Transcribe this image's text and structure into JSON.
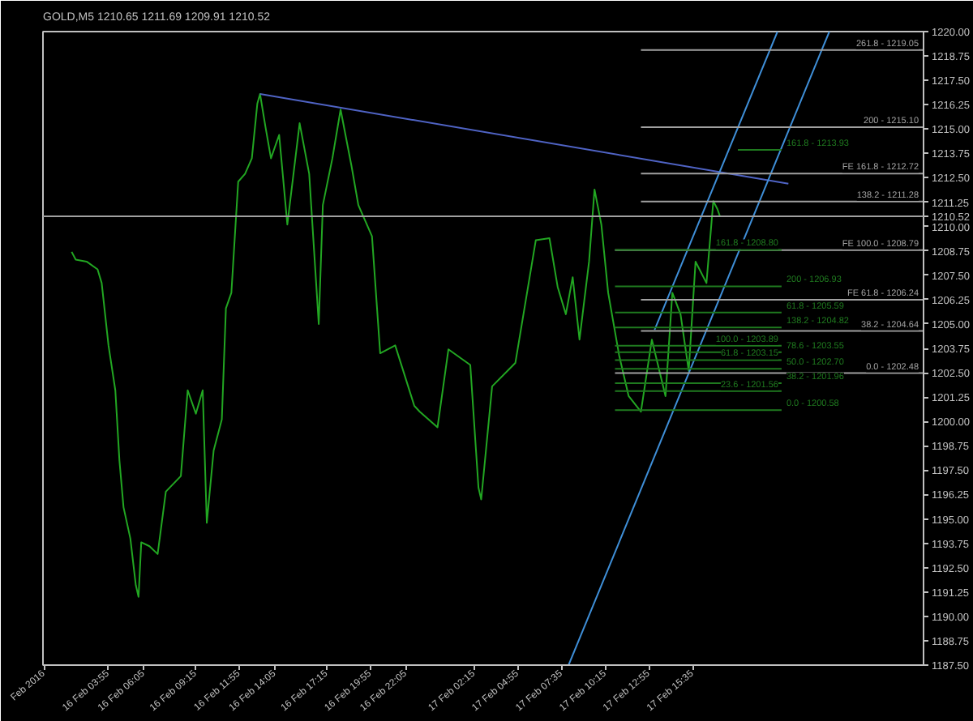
{
  "chart_data": {
    "type": "line",
    "title": "GOLD,M5  1210.65 1211.69 1209.91 1210.52",
    "xlim": [
      "2016-02-15T23:55",
      "2016-02-18T05:40"
    ],
    "ylim": [
      1187.5,
      1220.0
    ],
    "xticks": [
      {
        "value": "2016-02-16T00:00",
        "label": "Feb 2016"
      },
      {
        "value": "2016-02-16T03:55",
        "label": "16 Feb 03:55"
      },
      {
        "value": "2016-02-16T06:05",
        "label": "16 Feb 06:05"
      },
      {
        "value": "2016-02-16T09:15",
        "label": "16 Feb 09:15"
      },
      {
        "value": "2016-02-16T11:55",
        "label": "16 Feb 11:55"
      },
      {
        "value": "2016-02-16T14:05",
        "label": "16 Feb 14:05"
      },
      {
        "value": "2016-02-16T17:15",
        "label": "16 Feb 17:15"
      },
      {
        "value": "2016-02-16T19:55",
        "label": "16 Feb 19:55"
      },
      {
        "value": "2016-02-16T22:05",
        "label": "16 Feb 22:05"
      },
      {
        "value": "2016-02-17T02:15",
        "label": "17 Feb 02:15"
      },
      {
        "value": "2016-02-17T04:55",
        "label": "17 Feb 04:55"
      },
      {
        "value": "2016-02-17T07:35",
        "label": "17 Feb 07:35"
      },
      {
        "value": "2016-02-17T10:15",
        "label": "17 Feb 10:15"
      },
      {
        "value": "2016-02-17T12:55",
        "label": "17 Feb 12:55"
      },
      {
        "value": "2016-02-17T15:35",
        "label": "17 Feb 15:35"
      }
    ],
    "yticks": [
      {
        "value": 1187.5,
        "label": "1187.50"
      },
      {
        "value": 1188.75,
        "label": "1188.75"
      },
      {
        "value": 1190.0,
        "label": "1190.00"
      },
      {
        "value": 1191.25,
        "label": "1191.25"
      },
      {
        "value": 1192.5,
        "label": "1192.50"
      },
      {
        "value": 1193.75,
        "label": "1193.75"
      },
      {
        "value": 1195.0,
        "label": "1195.00"
      },
      {
        "value": 1196.25,
        "label": "1196.25"
      },
      {
        "value": 1197.5,
        "label": "1197.50"
      },
      {
        "value": 1198.75,
        "label": "1198.75"
      },
      {
        "value": 1200.0,
        "label": "1200.00"
      },
      {
        "value": 1201.25,
        "label": "1201.25"
      },
      {
        "value": 1202.5,
        "label": "1202.50"
      },
      {
        "value": 1203.75,
        "label": "1203.75"
      },
      {
        "value": 1205.0,
        "label": "1205.00"
      },
      {
        "value": 1206.25,
        "label": "1206.25"
      },
      {
        "value": 1207.5,
        "label": "1207.50"
      },
      {
        "value": 1208.75,
        "label": "1208.75"
      },
      {
        "value": 1210.0,
        "label": "1210.00"
      },
      {
        "value": 1210.52,
        "label": "1210.52"
      },
      {
        "value": 1211.25,
        "label": "1211.25"
      },
      {
        "value": 1212.5,
        "label": "1212.50"
      },
      {
        "value": 1213.75,
        "label": "1213.75"
      },
      {
        "value": 1215.0,
        "label": "1215.00"
      },
      {
        "value": 1216.25,
        "label": "1216.25"
      },
      {
        "value": 1217.5,
        "label": "1217.50"
      },
      {
        "value": 1218.75,
        "label": "1218.75"
      },
      {
        "value": 1220.0,
        "label": "1220.00"
      }
    ],
    "grid": false,
    "marker": "none",
    "line_style": "solid",
    "ref_lines": [
      {
        "axis": "y",
        "value": 1210.52,
        "color": "#a0a0a0"
      }
    ],
    "series": [
      {
        "color": "#22a622",
        "x": [
          "2016-02-16T01:40",
          "2016-02-16T01:55",
          "2016-02-16T02:35",
          "2016-02-16T03:15",
          "2016-02-16T03:30",
          "2016-02-16T03:55",
          "2016-02-16T04:20",
          "2016-02-16T04:35",
          "2016-02-16T04:50",
          "2016-02-16T05:15",
          "2016-02-16T05:35",
          "2016-02-16T05:45",
          "2016-02-16T05:55",
          "2016-02-16T06:25",
          "2016-02-16T06:55",
          "2016-02-16T07:25",
          "2016-02-16T08:20",
          "2016-02-16T08:45",
          "2016-02-16T09:15",
          "2016-02-16T09:40",
          "2016-02-16T09:55",
          "2016-02-16T10:20",
          "2016-02-16T10:50",
          "2016-02-16T11:05",
          "2016-02-16T11:25",
          "2016-02-16T11:50",
          "2016-02-16T12:15",
          "2016-02-16T12:40",
          "2016-02-16T13:00",
          "2016-02-16T13:10",
          "2016-02-16T13:30",
          "2016-02-16T13:50",
          "2016-02-16T14:20",
          "2016-02-16T14:50",
          "2016-02-16T15:35",
          "2016-02-16T16:10",
          "2016-02-16T16:45",
          "2016-02-16T17:00",
          "2016-02-16T17:35",
          "2016-02-16T18:05",
          "2016-02-16T18:45",
          "2016-02-16T19:10",
          "2016-02-16T19:35",
          "2016-02-16T20:00",
          "2016-02-16T20:30",
          "2016-02-16T21:25",
          "2016-02-16T22:35",
          "2016-02-16T22:55",
          "2016-02-17T00:00",
          "2016-02-17T00:40",
          "2016-02-17T02:00",
          "2016-02-17T02:30",
          "2016-02-17T02:40",
          "2016-02-17T03:20",
          "2016-02-17T04:45",
          "2016-02-17T06:00",
          "2016-02-17T06:50",
          "2016-02-17T07:20",
          "2016-02-17T07:50",
          "2016-02-17T08:15",
          "2016-02-17T08:40",
          "2016-02-17T09:15",
          "2016-02-17T09:35",
          "2016-02-17T10:00",
          "2016-02-17T10:25",
          "2016-02-17T11:05",
          "2016-02-17T11:40",
          "2016-02-17T12:25",
          "2016-02-17T13:05",
          "2016-02-17T13:55",
          "2016-02-17T14:20",
          "2016-02-17T14:50",
          "2016-02-17T15:20",
          "2016-02-17T15:45",
          "2016-02-17T16:25",
          "2016-02-17T16:50",
          "2016-02-17T17:05",
          "2016-02-17T17:15"
        ],
        "values": [
          1208.7,
          1208.3,
          1208.2,
          1207.8,
          1207.1,
          1203.9,
          1201.6,
          1198.0,
          1195.6,
          1194.0,
          1191.6,
          1191.0,
          1193.8,
          1193.6,
          1193.2,
          1196.4,
          1197.2,
          1201.6,
          1200.4,
          1201.6,
          1194.8,
          1198.5,
          1200.1,
          1205.8,
          1206.6,
          1212.3,
          1212.7,
          1213.5,
          1216.3,
          1216.8,
          1215.1,
          1213.5,
          1214.7,
          1210.1,
          1215.3,
          1212.7,
          1205.0,
          1211.1,
          1213.5,
          1216.0,
          1213.1,
          1211.1,
          1210.3,
          1209.5,
          1203.5,
          1203.9,
          1200.8,
          1200.5,
          1199.7,
          1203.7,
          1202.9,
          1196.6,
          1196.0,
          1201.8,
          1203.0,
          1209.3,
          1209.4,
          1206.9,
          1205.5,
          1207.4,
          1204.2,
          1208.2,
          1211.9,
          1210.1,
          1206.6,
          1203.4,
          1201.3,
          1200.5,
          1204.2,
          1201.3,
          1206.6,
          1205.5,
          1202.6,
          1208.2,
          1207.1,
          1211.3,
          1210.9,
          1210.5
        ]
      },
      {
        "color": "#4f63c4",
        "x": [
          "2016-02-16T13:10",
          "2016-02-17T21:25"
        ],
        "values": [
          1216.8,
          1212.2
        ]
      },
      {
        "color": "#3f8fd8",
        "x": [
          "2016-02-17T08:00",
          "2016-02-17T23:55"
        ],
        "values": [
          1187.5,
          1220.0
        ]
      },
      {
        "color": "#3f8fd8",
        "x": [
          "2016-02-17T13:15",
          "2016-02-17T20:45"
        ],
        "values": [
          1204.7,
          1220.0
        ]
      },
      {
        "name": "261.8 - 1219.05",
        "color": "#a0a0a0",
        "x": [
          "2016-02-17T12:25",
          "2016-02-18T05:40"
        ],
        "values": [
          1219.05,
          1219.05
        ]
      },
      {
        "name": "200 - 1215.10",
        "color": "#a0a0a0",
        "x": [
          "2016-02-17T12:25",
          "2016-02-18T05:40"
        ],
        "values": [
          1215.1,
          1215.1
        ]
      },
      {
        "name": "FE 161.8 - 1212.72",
        "color": "#a0a0a0",
        "x": [
          "2016-02-17T12:25",
          "2016-02-18T05:40"
        ],
        "values": [
          1212.72,
          1212.72
        ]
      },
      {
        "name": "138.2 - 1211.28",
        "color": "#a0a0a0",
        "x": [
          "2016-02-17T12:25",
          "2016-02-18T05:40"
        ],
        "values": [
          1211.28,
          1211.28
        ]
      },
      {
        "name": "FE 100.0 - 1208.79",
        "color": "#a0a0a0",
        "x": [
          "2016-02-17T10:50",
          "2016-02-18T05:40"
        ],
        "values": [
          1208.79,
          1208.79
        ]
      },
      {
        "name": "FE 61.8 - 1206.24",
        "color": "#a0a0a0",
        "x": [
          "2016-02-17T12:25",
          "2016-02-18T05:40"
        ],
        "values": [
          1206.24,
          1206.24
        ]
      },
      {
        "name": "38.2 - 1204.64",
        "color": "#a0a0a0",
        "x": [
          "2016-02-17T12:25",
          "2016-02-18T05:40"
        ],
        "values": [
          1204.64,
          1204.64
        ]
      },
      {
        "name": "0.0 - 1202.48",
        "color": "#a0a0a0",
        "x": [
          "2016-02-17T10:50",
          "2016-02-18T05:40"
        ],
        "values": [
          1202.48,
          1202.48
        ]
      },
      {
        "name": "161.8 - 1213.93",
        "color": "#1f7a1f",
        "x": [
          "2016-02-17T18:20",
          "2016-02-17T21:00"
        ],
        "values": [
          1213.93,
          1213.93
        ]
      },
      {
        "name": "161.8 - 1208.80",
        "color": "#1f7a1f",
        "x": [
          "2016-02-17T10:50",
          "2016-02-17T21:00"
        ],
        "values": [
          1208.8,
          1208.8
        ]
      },
      {
        "name": "200 - 1206.93",
        "color": "#1f7a1f",
        "x": [
          "2016-02-17T10:50",
          "2016-02-17T21:00"
        ],
        "values": [
          1206.93,
          1206.93
        ]
      },
      {
        "name": "61.8 - 1205.59",
        "color": "#1f7a1f",
        "x": [
          "2016-02-17T10:50",
          "2016-02-17T21:00"
        ],
        "values": [
          1205.59,
          1205.59
        ]
      },
      {
        "name": "138.2 - 1204.82",
        "color": "#1f7a1f",
        "x": [
          "2016-02-17T10:50",
          "2016-02-17T21:00"
        ],
        "values": [
          1204.82,
          1204.82
        ]
      },
      {
        "name": "50.0 - 1202.70",
        "color": "#1f7a1f",
        "x": [
          "2016-02-17T10:50",
          "2016-02-17T21:00"
        ],
        "values": [
          1202.7,
          1202.7
        ]
      },
      {
        "name": "78.6 - 1203.55",
        "color": "#1f7a1f",
        "x": [
          "2016-02-17T10:50",
          "2016-02-17T21:00"
        ],
        "values": [
          1203.55,
          1203.55
        ]
      },
      {
        "name": "38.2 - 1201.96",
        "color": "#1f7a1f",
        "x": [
          "2016-02-17T10:50",
          "2016-02-17T21:00"
        ],
        "values": [
          1201.96,
          1201.96
        ]
      },
      {
        "name": "0.0 - 1200.58",
        "color": "#1f7a1f",
        "x": [
          "2016-02-17T10:50",
          "2016-02-17T21:00"
        ],
        "values": [
          1200.58,
          1200.58
        ]
      },
      {
        "name": "100.0 - 1203.89",
        "color": "#1f7a1f",
        "x": [
          "2016-02-17T10:50",
          "2016-02-17T21:00"
        ],
        "values": [
          1203.89,
          1203.89
        ]
      },
      {
        "name": "61.8 - 1203.15",
        "color": "#1f7a1f",
        "x": [
          "2016-02-17T10:50",
          "2016-02-17T21:00"
        ],
        "values": [
          1203.15,
          1203.15
        ]
      },
      {
        "name": "23.6 - 1201.56",
        "color": "#1f7a1f",
        "x": [
          "2016-02-17T10:50",
          "2016-02-17T21:00"
        ],
        "values": [
          1201.56,
          1201.56
        ]
      }
    ]
  }
}
